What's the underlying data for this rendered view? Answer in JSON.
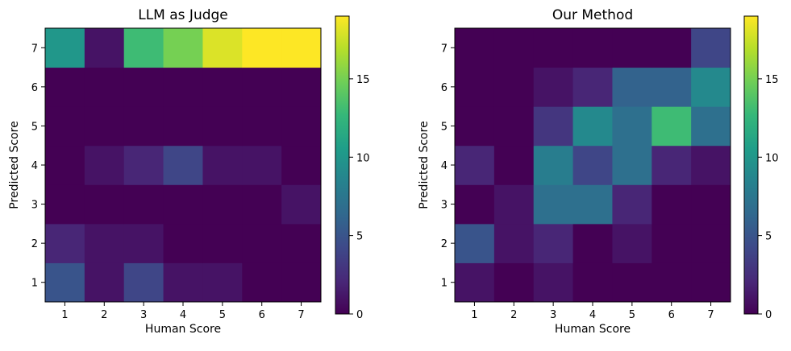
{
  "chart_data": [
    {
      "type": "heatmap",
      "title": "LLM as Judge",
      "xlabel": "Human Score",
      "ylabel": "Predicted Score",
      "x": [
        1,
        2,
        3,
        4,
        5,
        6,
        7
      ],
      "y": [
        1,
        2,
        3,
        4,
        5,
        6,
        7
      ],
      "z_rows_predicted_1_to_7": [
        [
          5,
          1,
          4,
          1,
          1,
          0,
          0
        ],
        [
          2,
          1,
          1,
          0,
          0,
          0,
          0
        ],
        [
          0,
          0,
          0,
          0,
          0,
          0,
          1
        ],
        [
          0,
          1,
          2,
          4,
          1,
          1,
          0
        ],
        [
          0,
          0,
          0,
          0,
          0,
          0,
          0
        ],
        [
          0,
          0,
          0,
          0,
          0,
          0,
          0
        ],
        [
          10,
          1,
          13,
          15,
          18,
          19,
          19
        ]
      ],
      "colorbar": {
        "min": 0,
        "max": 19,
        "ticks": [
          0,
          5,
          10,
          15
        ]
      },
      "colormap": "viridis"
    },
    {
      "type": "heatmap",
      "title": "Our Method",
      "xlabel": "Human Score",
      "ylabel": "Predicted Score",
      "x": [
        1,
        2,
        3,
        4,
        5,
        6,
        7
      ],
      "y": [
        1,
        2,
        3,
        4,
        5,
        6,
        7
      ],
      "z_rows_predicted_1_to_7": [
        [
          1,
          0,
          1,
          0,
          0,
          0,
          0
        ],
        [
          5,
          1,
          2,
          0,
          1,
          0,
          0
        ],
        [
          0,
          1,
          7,
          7,
          2,
          0,
          0
        ],
        [
          2,
          0,
          8,
          4,
          7,
          2,
          1
        ],
        [
          0,
          0,
          3,
          9,
          7,
          13,
          7
        ],
        [
          0,
          0,
          1,
          2,
          6,
          6,
          9
        ],
        [
          0,
          0,
          0,
          0,
          0,
          0,
          4
        ]
      ],
      "colorbar": {
        "min": 0,
        "max": 19,
        "ticks": [
          0,
          5,
          10,
          15
        ]
      },
      "colormap": "viridis"
    }
  ]
}
